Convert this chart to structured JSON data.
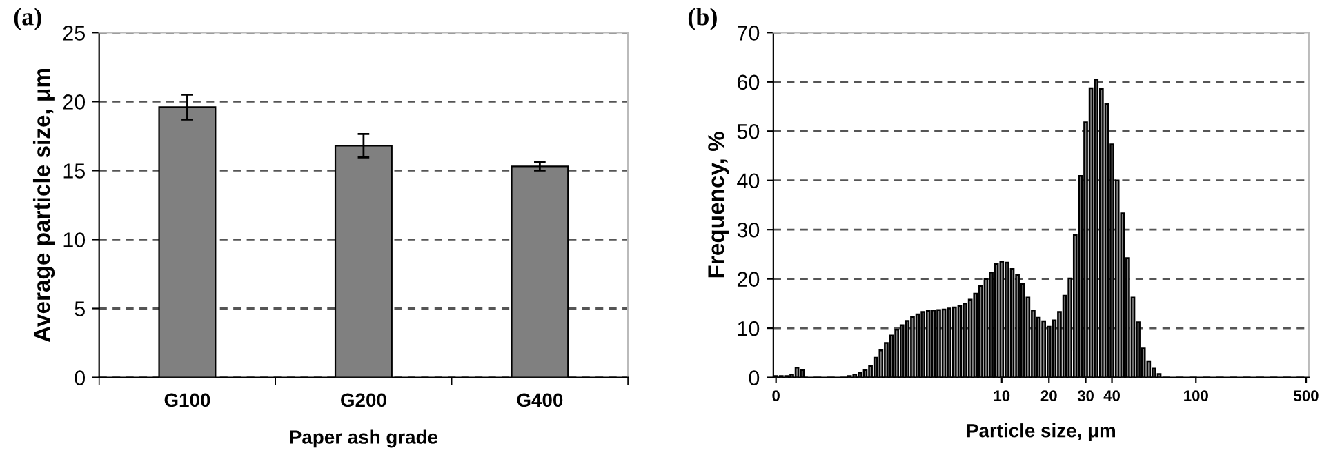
{
  "chart_data": [
    {
      "type": "bar",
      "title": "(a)",
      "xlabel": "Paper ash grade",
      "ylabel": "Average particle size, μm",
      "categories": [
        "G100",
        "G200",
        "G400"
      ],
      "series": [
        {
          "color": "#808080",
          "values": [
            19.6,
            16.8,
            15.3
          ],
          "errors": [
            0.9,
            0.85,
            0.3
          ]
        }
      ],
      "ylim": [
        0,
        25
      ],
      "yticks": [
        0,
        5,
        10,
        15,
        20,
        25
      ],
      "grid": "y",
      "legend": false
    },
    {
      "type": "bar",
      "title": "(b)",
      "xlabel": "Particle size, μm",
      "ylabel": "Frequency, %",
      "categories": [
        "0",
        null,
        null,
        null,
        null,
        null,
        null,
        null,
        null,
        null,
        null,
        null,
        null,
        null,
        null,
        null,
        null,
        null,
        null,
        null,
        null,
        null,
        null,
        null,
        null,
        null,
        null,
        null,
        null,
        null,
        null,
        null,
        null,
        null,
        null,
        null,
        null,
        null,
        null,
        null,
        null,
        null,
        null,
        "10",
        null,
        null,
        null,
        null,
        null,
        null,
        null,
        null,
        "20",
        null,
        null,
        null,
        null,
        null,
        null,
        "30",
        null,
        null,
        null,
        null,
        "40",
        null,
        null,
        null,
        null,
        null,
        null,
        null,
        null,
        null,
        null,
        null,
        null,
        null,
        null,
        null,
        "100",
        null,
        null,
        null,
        null,
        null,
        null,
        null,
        null,
        null,
        null,
        null,
        null,
        null,
        null,
        null,
        null,
        null,
        null,
        null,
        null,
        "500"
      ],
      "series": [
        {
          "color": "#808080",
          "values": [
            0.3,
            0.3,
            0.3,
            0.6,
            2,
            1.5,
            0,
            0,
            0,
            0,
            0,
            0,
            0,
            0,
            0.3,
            0.6,
            1,
            1.5,
            2.3,
            4,
            5.5,
            7,
            8.5,
            9.7,
            10.6,
            11.5,
            12.3,
            12.8,
            13.3,
            13.5,
            13.6,
            13.7,
            13.8,
            14,
            14.2,
            14.5,
            15,
            15.8,
            17,
            18.5,
            20,
            21.3,
            23,
            23.5,
            23.3,
            22,
            20.8,
            19,
            16.2,
            13.6,
            12.1,
            11.4,
            10.3,
            11.6,
            13.3,
            16.6,
            20.1,
            28.9,
            40.9,
            51.8,
            58.7,
            60.5,
            58.6,
            55.5,
            47.3,
            40,
            33.3,
            24.2,
            16.2,
            11.2,
            5.9,
            3.3,
            1.8,
            0.7,
            0,
            0,
            0,
            0,
            0,
            0,
            0,
            0,
            0,
            0,
            0,
            0,
            0,
            0,
            0,
            0,
            0,
            0,
            0,
            0,
            0,
            0,
            0,
            0,
            0,
            0,
            0,
            0
          ]
        }
      ],
      "ylim": [
        0,
        70
      ],
      "yticks": [
        0,
        10,
        20,
        30,
        40,
        50,
        60,
        70
      ],
      "grid": "y",
      "legend": false
    }
  ]
}
